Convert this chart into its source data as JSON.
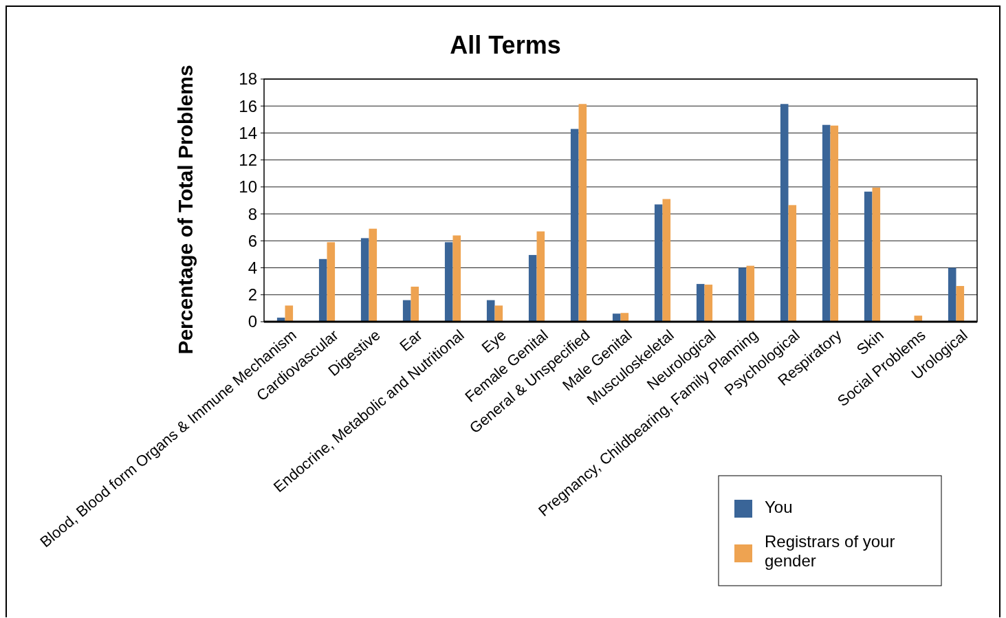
{
  "chart_data": {
    "type": "bar",
    "title": "All Terms",
    "ylabel": "Percentage of Total Problems",
    "categories": [
      "Blood, Blood form Organs & Immune Mechanism",
      "Cardiovascular",
      "Digestive",
      "Ear",
      "Endocrine, Metabolic and Nutritional",
      "Eye",
      "Female Genital",
      "General & Unspecified",
      "Male Genital",
      "Musculoskeletal",
      "Neurological",
      "Pregnancy, Childbearing, Family Planning",
      "Psychological",
      "Respiratory",
      "Skin",
      "Social Problems",
      "Urological"
    ],
    "series": [
      {
        "name": "You",
        "color": "#3a6598",
        "values": [
          0.3,
          4.65,
          6.2,
          1.6,
          5.9,
          1.6,
          4.95,
          14.3,
          0.6,
          8.7,
          2.8,
          4.0,
          16.15,
          14.6,
          9.65,
          0,
          4.0
        ]
      },
      {
        "name": "Registrars of your gender",
        "color": "#eea351",
        "values": [
          1.2,
          5.9,
          6.9,
          2.6,
          6.4,
          1.2,
          6.7,
          16.15,
          0.65,
          9.1,
          2.75,
          4.15,
          8.65,
          14.55,
          9.95,
          0.45,
          2.65
        ]
      }
    ],
    "ylim": [
      0,
      18
    ],
    "yticks": [
      0,
      2,
      4,
      6,
      8,
      10,
      12,
      14,
      16,
      18
    ],
    "grid": "y",
    "legend": "bottom right"
  }
}
